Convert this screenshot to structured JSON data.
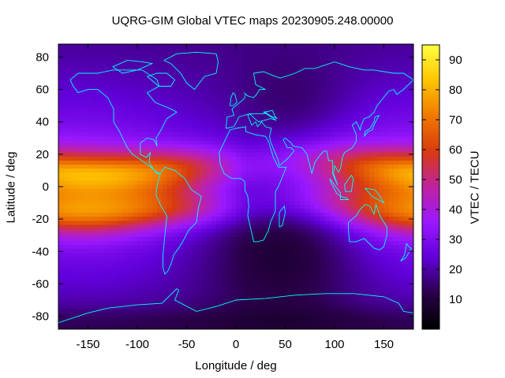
{
  "chart_data": {
    "type": "heatmap",
    "title": "UQRG-GIM Global VTEC maps 20230905.248.00000",
    "xlabel": "Longitude / deg",
    "ylabel": "Latitude / deg",
    "colorbar_label": "VTEC / TECU",
    "xlim": [
      -180,
      180
    ],
    "ylim": [
      -88,
      88
    ],
    "x_ticks": [
      -150,
      -100,
      -50,
      0,
      50,
      100,
      150
    ],
    "y_ticks": [
      -80,
      -60,
      -40,
      -20,
      0,
      20,
      40,
      60,
      80
    ],
    "colorbar_range": [
      0,
      95
    ],
    "colorbar_ticks": [
      10,
      20,
      30,
      40,
      50,
      60,
      70,
      80,
      90
    ],
    "colormap": [
      "#000000",
      "#2a004a",
      "#6000d8",
      "#9a18ff",
      "#c023a0",
      "#d83a10",
      "#f07800",
      "#ffc400",
      "#ffff40"
    ],
    "coastline_color": "#00ffff",
    "grid": false,
    "grid_resolution": {
      "lon_step": 5,
      "lat_step": 2.5
    },
    "features": [
      {
        "name": "equatorial-anomaly-americas",
        "lon": -150,
        "lat": 5,
        "peak_tecu": 80
      },
      {
        "name": "equatorial-anomaly-pacific",
        "lon": 165,
        "lat": 5,
        "peak_tecu": 72
      },
      {
        "name": "nightside-minimum",
        "lon": 50,
        "lat": -50,
        "peak_tecu": 3
      }
    ]
  }
}
